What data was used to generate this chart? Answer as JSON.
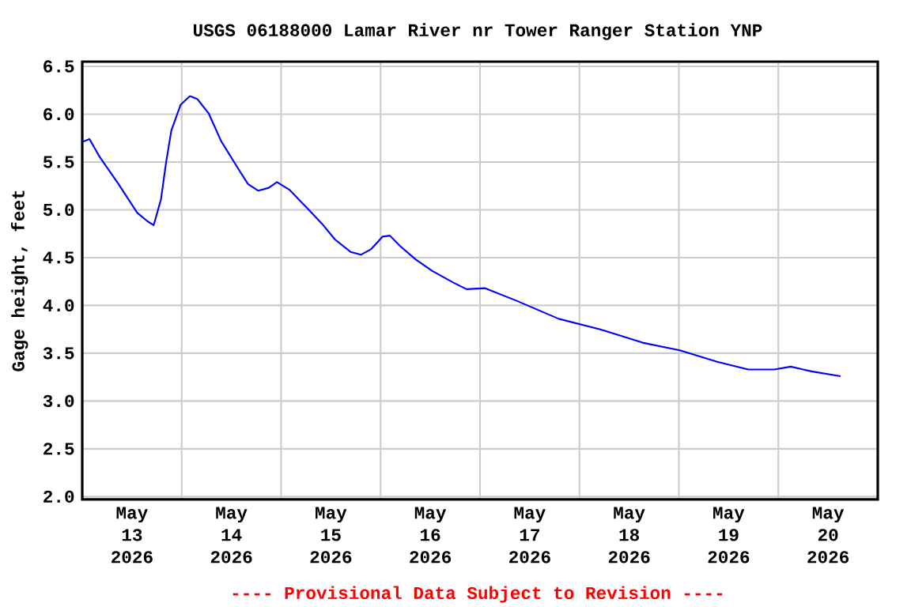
{
  "chart_data": {
    "type": "line",
    "title": "USGS 06188000 Lamar River nr Tower Ranger Station YNP",
    "ylabel": "Gage height, feet",
    "annotations": [
      "---- Provisional Data Subject to Revision ----"
    ],
    "x": [
      "2026-05-13T00:00",
      "2026-05-13T01:45",
      "2026-05-13T04:15",
      "2026-05-13T08:45",
      "2026-05-13T13:15",
      "2026-05-13T15:45",
      "2026-05-13T17:15",
      "2026-05-13T19:00",
      "2026-05-13T20:15",
      "2026-05-13T21:30",
      "2026-05-13T23:45",
      "2026-05-14T02:00",
      "2026-05-14T03:45",
      "2026-05-14T06:30",
      "2026-05-14T09:30",
      "2026-05-14T13:30",
      "2026-05-14T16:00",
      "2026-05-14T18:30",
      "2026-05-14T21:00",
      "2026-05-14T23:00",
      "2026-05-15T02:00",
      "2026-05-15T06:00",
      "2026-05-15T09:45",
      "2026-05-15T13:00",
      "2026-05-15T16:45",
      "2026-05-15T19:15",
      "2026-05-15T21:45",
      "2026-05-16T00:30",
      "2026-05-16T02:15",
      "2026-05-16T04:45",
      "2026-05-16T08:30",
      "2026-05-16T12:30",
      "2026-05-16T17:30",
      "2026-05-16T20:45",
      "2026-05-17T01:15",
      "2026-05-17T08:45",
      "2026-05-17T19:00",
      "2026-05-18T05:00",
      "2026-05-18T15:15",
      "2026-05-19T00:15",
      "2026-05-19T09:15",
      "2026-05-19T16:45",
      "2026-05-19T23:00",
      "2026-05-20T03:00",
      "2026-05-20T08:00",
      "2026-05-20T15:00"
    ],
    "series": [
      {
        "color": "#0000ff",
        "values": [
          5.71,
          5.74,
          5.55,
          5.27,
          4.97,
          4.88,
          4.84,
          5.11,
          5.5,
          5.83,
          6.1,
          6.19,
          6.16,
          6.01,
          5.72,
          5.44,
          5.27,
          5.2,
          5.23,
          5.29,
          5.21,
          5.03,
          4.86,
          4.69,
          4.56,
          4.53,
          4.59,
          4.72,
          4.73,
          4.62,
          4.48,
          4.36,
          4.24,
          4.17,
          4.18,
          4.05,
          3.86,
          3.75,
          3.61,
          3.53,
          3.41,
          3.33,
          3.33,
          3.36,
          3.31,
          3.26
        ]
      }
    ],
    "xlim": [
      "2026-05-13T00:00",
      "2026-05-21T00:00"
    ],
    "xticks": [
      {
        "value": "2026-05-13T00:00",
        "label": null
      },
      {
        "value": "2026-05-13T12:00",
        "label": "May 13 2026"
      },
      {
        "value": "2026-05-14T00:00",
        "label": null
      },
      {
        "value": "2026-05-14T12:00",
        "label": "May 14 2026"
      },
      {
        "value": "2026-05-15T00:00",
        "label": null
      },
      {
        "value": "2026-05-15T12:00",
        "label": "May 15 2026"
      },
      {
        "value": "2026-05-16T00:00",
        "label": null
      },
      {
        "value": "2026-05-16T12:00",
        "label": "May 16 2026"
      },
      {
        "value": "2026-05-17T00:00",
        "label": null
      },
      {
        "value": "2026-05-17T12:00",
        "label": "May 17 2026"
      },
      {
        "value": "2026-05-18T00:00",
        "label": null
      },
      {
        "value": "2026-05-18T12:00",
        "label": "May 18 2026"
      },
      {
        "value": "2026-05-19T00:00",
        "label": null
      },
      {
        "value": "2026-05-19T12:00",
        "label": "May 19 2026"
      },
      {
        "value": "2026-05-20T00:00",
        "label": null
      },
      {
        "value": "2026-05-20T12:00",
        "label": "May 20 2026"
      },
      {
        "value": "2026-05-21T00:00",
        "label": null
      }
    ],
    "ylim": [
      1.97,
      6.55
    ],
    "yticks": [
      {
        "value": 2.0,
        "label": "2.0"
      },
      {
        "value": 2.5,
        "label": "2.5"
      },
      {
        "value": 3.0,
        "label": "3.0"
      },
      {
        "value": 3.5,
        "label": "3.5"
      },
      {
        "value": 4.0,
        "label": "4.0"
      },
      {
        "value": 4.5,
        "label": "4.5"
      },
      {
        "value": 5.0,
        "label": "5.0"
      },
      {
        "value": 5.5,
        "label": "5.5"
      },
      {
        "value": 6.0,
        "label": "6.0"
      },
      {
        "value": 6.5,
        "label": "6.5"
      }
    ],
    "grid": true,
    "marker": "none",
    "line_style": "solid"
  }
}
